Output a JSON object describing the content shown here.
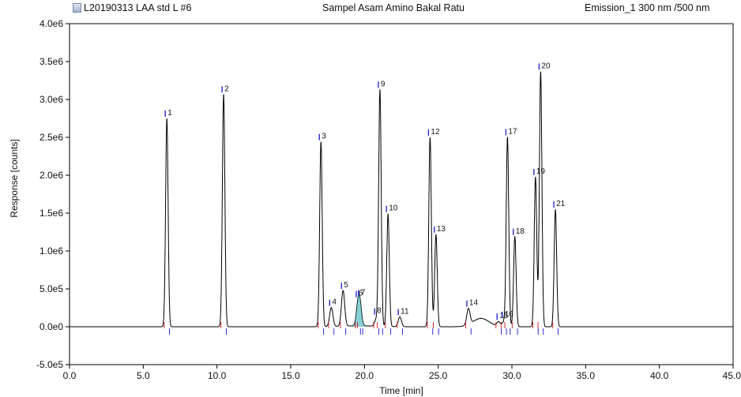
{
  "header": {
    "sample_id": "L20190313 LAA std L #6",
    "sample_name": "Sampel Asam Amino Bakal Ratu",
    "channel": "Emission_1 300 nm /500 nm"
  },
  "colors": {
    "trace": "#000000",
    "peak_marker": "#2a2ad0",
    "baseline_marker": "#d02a2a",
    "fill": "#2aa8b0"
  },
  "chart_data": {
    "type": "line",
    "title": "",
    "xlabel": "Time [min]",
    "ylabel": "Response [counts]",
    "xlim": [
      0,
      45
    ],
    "ylim": [
      -500000,
      4000000
    ],
    "x_ticks": [
      "0.0",
      "5.0",
      "10.0",
      "15.0",
      "20.0",
      "25.0",
      "30.0",
      "35.0",
      "40.0",
      "45.0"
    ],
    "y_ticks": [
      "-5.0e5",
      "0.0e0",
      "5.0e5",
      "1.0e6",
      "1.5e6",
      "2.0e6",
      "2.5e6",
      "3.0e6",
      "3.5e6",
      "4.0e6"
    ],
    "grid": false,
    "peaks": [
      {
        "label": "1",
        "time": 6.6,
        "height": 2750000
      },
      {
        "label": "2",
        "time": 10.45,
        "height": 3070000
      },
      {
        "label": "3",
        "time": 17.05,
        "height": 2440000
      },
      {
        "label": "4",
        "time": 17.75,
        "height": 250000
      },
      {
        "label": "5",
        "time": 18.55,
        "height": 470000
      },
      {
        "label": "6",
        "time": 19.55,
        "height": 250000
      },
      {
        "label": "7",
        "time": 19.7,
        "height": 270000
      },
      {
        "label": "8",
        "time": 20.8,
        "height": 90000
      },
      {
        "label": "9",
        "time": 21.05,
        "height": 3120000
      },
      {
        "label": "10",
        "time": 21.6,
        "height": 1490000
      },
      {
        "label": "11",
        "time": 22.4,
        "height": 130000
      },
      {
        "label": "12",
        "time": 24.45,
        "height": 2500000
      },
      {
        "label": "13",
        "time": 24.85,
        "height": 1220000
      },
      {
        "label": "14",
        "time": 27.05,
        "height": 210000
      },
      {
        "label": "15",
        "time": 29.1,
        "height": 60000
      },
      {
        "label": "16",
        "time": 29.45,
        "height": 60000
      },
      {
        "label": "17",
        "time": 29.7,
        "height": 2500000
      },
      {
        "label": "18",
        "time": 30.2,
        "height": 1190000
      },
      {
        "label": "19",
        "time": 31.6,
        "height": 1980000
      },
      {
        "label": "20",
        "time": 31.95,
        "height": 3370000
      },
      {
        "label": "21",
        "time": 32.95,
        "height": 1550000
      }
    ]
  }
}
